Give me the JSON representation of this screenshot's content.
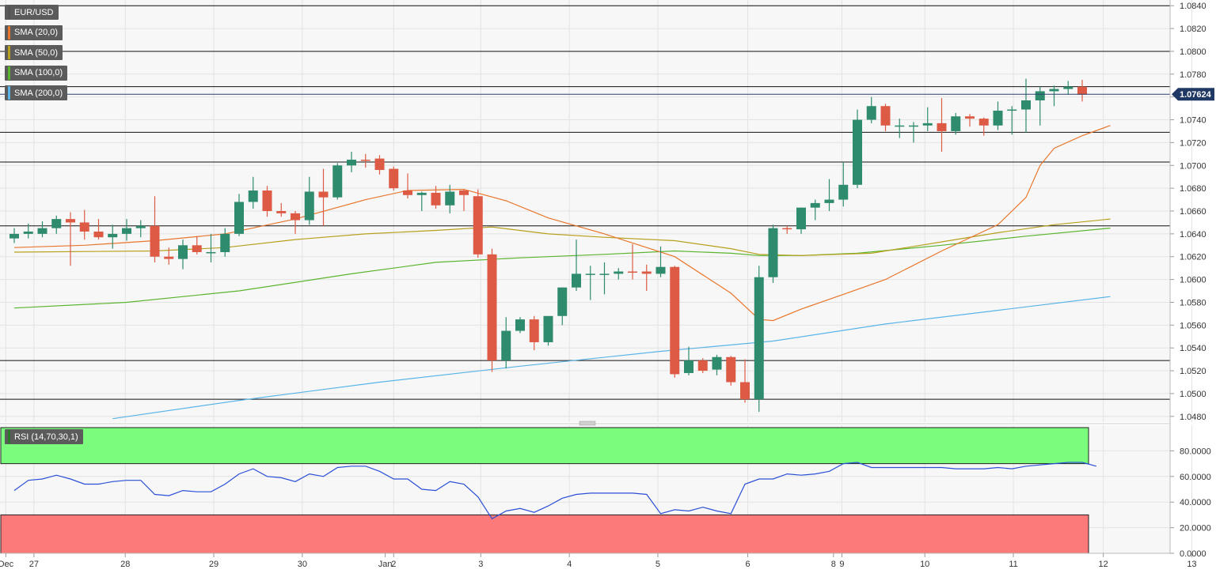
{
  "chart_data": {
    "type": "candlestick",
    "symbol": "EUR/USD",
    "legend": [
      {
        "label": "EUR/USD",
        "color": "#555555"
      },
      {
        "label": "SMA (20,0)",
        "color": "#e8762c"
      },
      {
        "label": "SMA (50,0)",
        "color": "#b7a01d"
      },
      {
        "label": "SMA (100,0)",
        "color": "#5bb42e"
      },
      {
        "label": "SMA (200,0)",
        "color": "#5ab4e8"
      }
    ],
    "last_price": "1.07624",
    "price_axis": {
      "min": 1.0475,
      "max": 1.0845,
      "ticks": [
        "1.0840",
        "1.0820",
        "1.0800",
        "1.0780",
        "1.0760",
        "1.0740",
        "1.0720",
        "1.0700",
        "1.0680",
        "1.0660",
        "1.0640",
        "1.0620",
        "1.0600",
        "1.0580",
        "1.0560",
        "1.0540",
        "1.0520",
        "1.0500",
        "1.0480"
      ]
    },
    "levels": [
      1.084,
      1.08,
      1.0769,
      1.0729,
      1.0703,
      1.0647,
      1.0529,
      1.0495
    ],
    "x_labels": [
      {
        "text": "Dec",
        "i": -0.6
      },
      {
        "text": "27",
        "i": 1.4
      },
      {
        "text": "28",
        "i": 7.9
      },
      {
        "text": "29",
        "i": 14.2
      },
      {
        "text": "30",
        "i": 20.5
      },
      {
        "text": "Jan",
        "i": 26.4
      },
      {
        "text": "2",
        "i": 27.0
      },
      {
        "text": "3",
        "i": 33.2
      },
      {
        "text": "4",
        "i": 39.5
      },
      {
        "text": "5",
        "i": 45.8
      },
      {
        "text": "6",
        "i": 52.2
      },
      {
        "text": "8",
        "i": 58.3
      },
      {
        "text": "9",
        "i": 58.9
      },
      {
        "text": "10",
        "i": 64.8
      },
      {
        "text": "11",
        "i": 71.1
      },
      {
        "text": "12",
        "i": 77.5
      },
      {
        "text": "13",
        "i": 83.8
      }
    ],
    "candles": [
      [
        1.0636,
        1.0645,
        1.0632,
        1.064
      ],
      [
        1.064,
        1.0649,
        1.0636,
        1.0642
      ],
      [
        1.064,
        1.0651,
        1.0637,
        1.0645
      ],
      [
        1.0645,
        1.0656,
        1.064,
        1.0653
      ],
      [
        1.0653,
        1.0659,
        1.0612,
        1.065
      ],
      [
        1.065,
        1.0661,
        1.0635,
        1.0642
      ],
      [
        1.0642,
        1.0653,
        1.0635,
        1.0637
      ],
      [
        1.0637,
        1.0648,
        1.0627,
        1.064
      ],
      [
        1.064,
        1.0653,
        1.0634,
        1.0645
      ],
      [
        1.0645,
        1.0652,
        1.0637,
        1.0647
      ],
      [
        1.0647,
        1.0673,
        1.0615,
        1.062
      ],
      [
        1.062,
        1.0628,
        1.0613,
        1.0618
      ],
      [
        1.0618,
        1.0635,
        1.0609,
        1.063
      ],
      [
        1.063,
        1.0638,
        1.0622,
        1.0624
      ],
      [
        1.0624,
        1.064,
        1.0615,
        1.0624
      ],
      [
        1.0624,
        1.0645,
        1.062,
        1.064
      ],
      [
        1.064,
        1.0675,
        1.0638,
        1.0668
      ],
      [
        1.0668,
        1.069,
        1.0662,
        1.0678
      ],
      [
        1.0678,
        1.0682,
        1.0655,
        1.066
      ],
      [
        1.066,
        1.0667,
        1.0655,
        1.0658
      ],
      [
        1.0658,
        1.066,
        1.064,
        1.0652
      ],
      [
        1.0652,
        1.069,
        1.0648,
        1.0677
      ],
      [
        1.0677,
        1.0697,
        1.0647,
        1.0672
      ],
      [
        1.0672,
        1.0702,
        1.067,
        1.07
      ],
      [
        1.07,
        1.0712,
        1.0694,
        1.0705
      ],
      [
        1.0705,
        1.071,
        1.0698,
        1.0704
      ],
      [
        1.0706,
        1.0709,
        1.0692,
        1.0696
      ],
      [
        1.0697,
        1.0699,
        1.0678,
        1.068
      ],
      [
        1.0678,
        1.0693,
        1.0671,
        1.0674
      ],
      [
        1.0674,
        1.0677,
        1.066,
        1.0676
      ],
      [
        1.0676,
        1.0682,
        1.0662,
        1.0665
      ],
      [
        1.0665,
        1.0683,
        1.0658,
        1.0677
      ],
      [
        1.0678,
        1.0679,
        1.066,
        1.0674
      ],
      [
        1.0673,
        1.0679,
        1.0619,
        1.0622
      ],
      [
        1.0622,
        1.0627,
        1.0519,
        1.0529
      ],
      [
        1.0529,
        1.0567,
        1.0522,
        1.0555
      ],
      [
        1.0555,
        1.0567,
        1.0553,
        1.0565
      ],
      [
        1.0565,
        1.0568,
        1.0538,
        1.0545
      ],
      [
        1.0545,
        1.0567,
        1.0542,
        1.0568
      ],
      [
        1.0568,
        1.0593,
        1.056,
        1.0593
      ],
      [
        1.0593,
        1.0635,
        1.059,
        1.0605
      ],
      [
        1.0605,
        1.0612,
        1.0582,
        1.0605
      ],
      [
        1.0604,
        1.0615,
        1.0587,
        1.0605
      ],
      [
        1.0605,
        1.061,
        1.06,
        1.0607
      ],
      [
        1.0607,
        1.0631,
        1.06,
        1.0606
      ],
      [
        1.0607,
        1.0613,
        1.059,
        1.0605
      ],
      [
        1.0605,
        1.0629,
        1.0602,
        1.0611
      ],
      [
        1.0611,
        1.0612,
        1.0514,
        1.0517
      ],
      [
        1.0518,
        1.0541,
        1.0516,
        1.0529
      ],
      [
        1.0529,
        1.0531,
        1.0518,
        1.052
      ],
      [
        1.0521,
        1.0534,
        1.0516,
        1.0532
      ],
      [
        1.0532,
        1.0533,
        1.0507,
        1.051
      ],
      [
        1.051,
        1.053,
        1.0492,
        1.0495
      ],
      [
        1.0495,
        1.0612,
        1.0484,
        1.0602
      ],
      [
        1.0602,
        1.0648,
        1.0597,
        1.0645
      ],
      [
        1.0645,
        1.0647,
        1.064,
        1.0644
      ],
      [
        1.0644,
        1.0663,
        1.064,
        1.0663
      ],
      [
        1.0663,
        1.067,
        1.0652,
        1.0667
      ],
      [
        1.0667,
        1.0688,
        1.066,
        1.067
      ],
      [
        1.067,
        1.0703,
        1.0664,
        1.0683
      ],
      [
        1.0683,
        1.0749,
        1.068,
        1.074
      ],
      [
        1.074,
        1.076,
        1.0737,
        1.0752
      ],
      [
        1.0752,
        1.0754,
        1.073,
        1.0735
      ],
      [
        1.0735,
        1.0741,
        1.0724,
        1.0735
      ],
      [
        1.0735,
        1.0738,
        1.072,
        1.0735
      ],
      [
        1.0735,
        1.0751,
        1.073,
        1.0737
      ],
      [
        1.0737,
        1.0759,
        1.0712,
        1.073
      ],
      [
        1.073,
        1.0746,
        1.0727,
        1.0743
      ],
      [
        1.0743,
        1.0745,
        1.0734,
        1.0741
      ],
      [
        1.0741,
        1.0742,
        1.0726,
        1.0735
      ],
      [
        1.0735,
        1.0756,
        1.0731,
        1.0748
      ],
      [
        1.0748,
        1.0752,
        1.0727,
        1.0749
      ],
      [
        1.0749,
        1.0776,
        1.0729,
        1.0757
      ],
      [
        1.0757,
        1.0769,
        1.0735,
        1.0765
      ],
      [
        1.0765,
        1.077,
        1.0752,
        1.0767
      ],
      [
        1.0767,
        1.0774,
        1.0762,
        1.0769
      ],
      [
        1.0769,
        1.0775,
        1.0756,
        1.0762
      ]
    ],
    "sma20": [
      [
        0,
        1.0628
      ],
      [
        5,
        1.063
      ],
      [
        10,
        1.0634
      ],
      [
        15,
        1.064
      ],
      [
        20,
        1.0653
      ],
      [
        25,
        1.067
      ],
      [
        28,
        1.0678
      ],
      [
        32,
        1.0679
      ],
      [
        35,
        1.0669
      ],
      [
        38,
        1.0654
      ],
      [
        42,
        1.064
      ],
      [
        47,
        1.062
      ],
      [
        51,
        1.0588
      ],
      [
        53,
        1.0565
      ],
      [
        54,
        1.0564
      ],
      [
        56,
        1.0574
      ],
      [
        59,
        1.0587
      ],
      [
        62,
        1.06
      ],
      [
        66,
        1.0625
      ],
      [
        70,
        1.0648
      ],
      [
        72,
        1.0672
      ],
      [
        73,
        1.07
      ],
      [
        74,
        1.0715
      ],
      [
        76,
        1.0726
      ],
      [
        78,
        1.0735
      ]
    ],
    "sma50": [
      [
        0,
        1.0624
      ],
      [
        10,
        1.0625
      ],
      [
        15,
        1.0628
      ],
      [
        20,
        1.0635
      ],
      [
        25,
        1.064
      ],
      [
        30,
        1.0643
      ],
      [
        34,
        1.0646
      ],
      [
        38,
        1.064
      ],
      [
        42,
        1.0637
      ],
      [
        47,
        1.0634
      ],
      [
        51,
        1.0627
      ],
      [
        53,
        1.0622
      ],
      [
        56,
        1.0621
      ],
      [
        61,
        1.0623
      ],
      [
        66,
        1.0633
      ],
      [
        70,
        1.0641
      ],
      [
        74,
        1.0648
      ],
      [
        78,
        1.0653
      ]
    ],
    "sma100": [
      [
        0,
        1.0575
      ],
      [
        8,
        1.058
      ],
      [
        16,
        1.059
      ],
      [
        24,
        1.0605
      ],
      [
        30,
        1.0615
      ],
      [
        36,
        1.0619
      ],
      [
        42,
        1.0622
      ],
      [
        47,
        1.0625
      ],
      [
        51,
        1.0623
      ],
      [
        53,
        1.0621
      ],
      [
        56,
        1.0621
      ],
      [
        60,
        1.0623
      ],
      [
        66,
        1.063
      ],
      [
        72,
        1.0638
      ],
      [
        78,
        1.0645
      ]
    ],
    "sma200": [
      [
        7,
        1.0478
      ],
      [
        16,
        1.0494
      ],
      [
        26,
        1.051
      ],
      [
        36,
        1.0524
      ],
      [
        46,
        1.0537
      ],
      [
        54,
        1.0546
      ],
      [
        62,
        1.0561
      ],
      [
        70,
        1.0573
      ],
      [
        78,
        1.0585
      ]
    ],
    "rsi": {
      "label": "RSI (14,70,30,1)",
      "ticks": [
        "80.0000",
        "60.0000",
        "40.0000",
        "20.0000",
        "0.0000"
      ],
      "min": 0,
      "max": 100,
      "overbought": 70,
      "oversold": 30,
      "values": [
        [
          0,
          49
        ],
        [
          1,
          57
        ],
        [
          2,
          58
        ],
        [
          3,
          61
        ],
        [
          4,
          58
        ],
        [
          5,
          54
        ],
        [
          6,
          54
        ],
        [
          7,
          56
        ],
        [
          8,
          57
        ],
        [
          9,
          57
        ],
        [
          10,
          46
        ],
        [
          11,
          45
        ],
        [
          12,
          49
        ],
        [
          13,
          48
        ],
        [
          14,
          48
        ],
        [
          15,
          54
        ],
        [
          16,
          62
        ],
        [
          17,
          66
        ],
        [
          18,
          60
        ],
        [
          19,
          59
        ],
        [
          20,
          56
        ],
        [
          21,
          62
        ],
        [
          22,
          60
        ],
        [
          23,
          67
        ],
        [
          24,
          68
        ],
        [
          25,
          68
        ],
        [
          26,
          64
        ],
        [
          27,
          58
        ],
        [
          28,
          58
        ],
        [
          29,
          50
        ],
        [
          30,
          49
        ],
        [
          31,
          56
        ],
        [
          32,
          54
        ],
        [
          33,
          44
        ],
        [
          34,
          27
        ],
        [
          35,
          33
        ],
        [
          36,
          35
        ],
        [
          37,
          32
        ],
        [
          38,
          37
        ],
        [
          39,
          43
        ],
        [
          40,
          46
        ],
        [
          41,
          47
        ],
        [
          42,
          47
        ],
        [
          43,
          47
        ],
        [
          44,
          47
        ],
        [
          45,
          46
        ],
        [
          46,
          31
        ],
        [
          47,
          34
        ],
        [
          48,
          33
        ],
        [
          49,
          36
        ],
        [
          50,
          33
        ],
        [
          51,
          31
        ],
        [
          52,
          54
        ],
        [
          53,
          58
        ],
        [
          54,
          58
        ],
        [
          55,
          62
        ],
        [
          56,
          61
        ],
        [
          57,
          62
        ],
        [
          58,
          64
        ],
        [
          59,
          70
        ],
        [
          60,
          71
        ],
        [
          61,
          67
        ],
        [
          62,
          67
        ],
        [
          63,
          67
        ],
        [
          64,
          67
        ],
        [
          65,
          67
        ],
        [
          66,
          67
        ],
        [
          67,
          66
        ],
        [
          68,
          66
        ],
        [
          69,
          66
        ],
        [
          70,
          67
        ],
        [
          71,
          66
        ],
        [
          72,
          68
        ],
        [
          73,
          69
        ],
        [
          74,
          70
        ],
        [
          75,
          71
        ],
        [
          76,
          71
        ],
        [
          77,
          68
        ]
      ]
    }
  }
}
